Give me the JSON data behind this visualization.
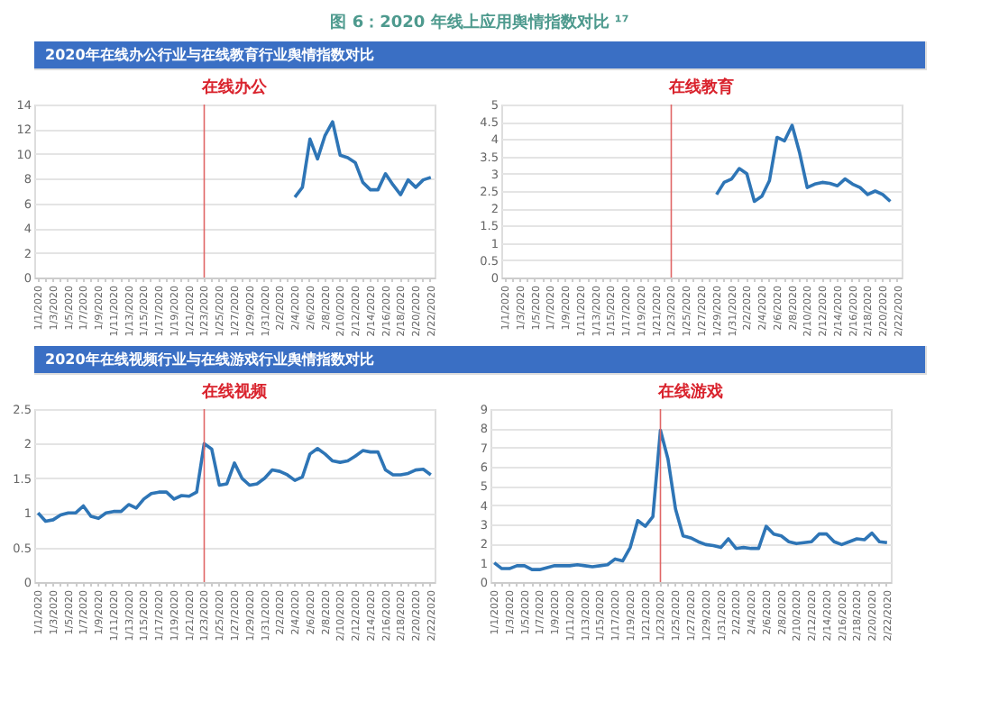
{
  "chart_data": [
    {
      "type": "line",
      "title": "在线办公",
      "annotations": [
        "图 6：2020 年线上应用舆情指数对比 ¹⁷",
        "2020年在线办公行业与在线教育行业舆情指数对比"
      ],
      "categories": [
        "1/1/2020",
        null,
        "1/3/2020",
        null,
        "1/5/2020",
        null,
        "1/7/2020",
        null,
        "1/9/2020",
        null,
        "1/11/2020",
        null,
        "1/13/2020",
        null,
        "1/15/2020",
        null,
        "1/17/2020",
        null,
        "1/19/2020",
        null,
        "1/21/2020",
        null,
        "1/23/2020",
        null,
        "1/25/2020",
        null,
        "1/27/2020",
        null,
        "1/29/2020",
        null,
        "1/31/2020",
        null,
        "2/2/2020",
        null,
        "2/4/2020",
        null,
        "2/6/2020",
        null,
        "2/8/2020",
        null,
        "2/10/2020",
        null,
        "2/12/2020",
        null,
        "2/14/2020",
        null,
        "2/16/2020",
        null,
        "2/18/2020",
        null,
        "2/20/2020",
        null,
        "2/22/2020"
      ],
      "series": [
        {
          "color": "#2e75b6",
          "values": [
            null,
            null,
            null,
            null,
            null,
            null,
            null,
            null,
            null,
            null,
            null,
            null,
            null,
            null,
            null,
            null,
            null,
            null,
            null,
            null,
            null,
            null,
            null,
            null,
            null,
            null,
            null,
            null,
            null,
            null,
            null,
            null,
            null,
            null,
            6.5,
            7.3,
            11.2,
            9.6,
            11.5,
            12.6,
            9.9,
            9.7,
            9.3,
            7.7,
            7.1,
            7.1,
            8.4,
            7.5,
            6.7,
            7.9,
            7.3,
            7.9,
            8.1
          ]
        }
      ],
      "ylim": [
        0,
        14
      ],
      "yticks": [
        0,
        2,
        4,
        6,
        8,
        10,
        12,
        14
      ],
      "grid": "y",
      "ref_lines": [
        {
          "axis": "x",
          "value": "1/23/2020",
          "color": "#e06666"
        }
      ]
    },
    {
      "type": "line",
      "title": "在线教育",
      "categories": [
        "1/1/2020",
        null,
        "1/3/2020",
        null,
        "1/5/2020",
        null,
        "1/7/2020",
        null,
        "1/9/2020",
        null,
        "1/11/2020",
        null,
        "1/13/2020",
        null,
        "1/15/2020",
        null,
        "1/17/2020",
        null,
        "1/19/2020",
        null,
        "1/21/2020",
        null,
        "1/23/2020",
        null,
        "1/25/2020",
        null,
        "1/27/2020",
        null,
        "1/29/2020",
        null,
        "1/31/2020",
        null,
        "2/2/2020",
        null,
        "2/4/2020",
        null,
        "2/6/2020",
        null,
        "2/8/2020",
        null,
        "2/10/2020",
        null,
        "2/12/2020",
        null,
        "2/14/2020",
        null,
        "2/16/2020",
        null,
        "2/18/2020",
        null,
        "2/20/2020",
        null,
        "2/22/2020"
      ],
      "series": [
        {
          "color": "#2e75b6",
          "values": [
            null,
            null,
            null,
            null,
            null,
            null,
            null,
            null,
            null,
            null,
            null,
            null,
            null,
            null,
            null,
            null,
            null,
            null,
            null,
            null,
            null,
            null,
            null,
            null,
            null,
            null,
            null,
            null,
            2.4,
            2.75,
            2.85,
            3.15,
            3.0,
            2.2,
            2.35,
            2.8,
            4.05,
            3.95,
            4.4,
            3.6,
            2.6,
            2.7,
            2.75,
            2.72,
            2.65,
            2.85,
            2.7,
            2.6,
            2.4,
            2.5,
            2.4,
            2.2,
            null
          ]
        }
      ],
      "ylim": [
        0,
        5
      ],
      "yticks": [
        0,
        0.5,
        1,
        1.5,
        2,
        2.5,
        3,
        3.5,
        4,
        4.5,
        5
      ],
      "grid": "y",
      "ref_lines": [
        {
          "axis": "x",
          "value": "1/23/2020",
          "color": "#e06666"
        }
      ]
    },
    {
      "type": "line",
      "title": "在线视频",
      "annotations": [
        "2020年在线视频行业与在线游戏行业舆情指数对比"
      ],
      "categories": [
        "1/1/2020",
        null,
        "1/3/2020",
        null,
        "1/5/2020",
        null,
        "1/7/2020",
        null,
        "1/9/2020",
        null,
        "1/11/2020",
        null,
        "1/13/2020",
        null,
        "1/15/2020",
        null,
        "1/17/2020",
        null,
        "1/19/2020",
        null,
        "1/21/2020",
        null,
        "1/23/2020",
        null,
        "1/25/2020",
        null,
        "1/27/2020",
        null,
        "1/29/2020",
        null,
        "1/31/2020",
        null,
        "2/2/2020",
        null,
        "2/4/2020",
        null,
        "2/6/2020",
        null,
        "2/8/2020",
        null,
        "2/10/2020",
        null,
        "2/12/2020",
        null,
        "2/14/2020",
        null,
        "2/16/2020",
        null,
        "2/18/2020",
        null,
        "2/20/2020",
        null,
        "2/22/2020"
      ],
      "series": [
        {
          "color": "#2e75b6",
          "values": [
            1.0,
            0.88,
            0.9,
            0.97,
            1.0,
            1.0,
            1.1,
            0.95,
            0.92,
            1.0,
            1.02,
            1.02,
            1.12,
            1.07,
            1.2,
            1.28,
            1.3,
            1.3,
            1.2,
            1.25,
            1.24,
            1.3,
            2.0,
            1.92,
            1.4,
            1.42,
            1.72,
            1.5,
            1.4,
            1.42,
            1.5,
            1.62,
            1.6,
            1.55,
            1.47,
            1.52,
            1.85,
            1.93,
            1.85,
            1.75,
            1.73,
            1.75,
            1.82,
            1.9,
            1.88,
            1.88,
            1.62,
            1.55,
            1.55,
            1.57,
            1.62,
            1.63,
            1.55
          ]
        }
      ],
      "ylim": [
        0,
        2.5
      ],
      "yticks": [
        0,
        0.5,
        1,
        1.5,
        2,
        2.5
      ],
      "grid": "y",
      "ref_lines": [
        {
          "axis": "x",
          "value": "1/23/2020",
          "color": "#e06666"
        }
      ]
    },
    {
      "type": "line",
      "title": "在线游戏",
      "categories": [
        "1/1/2020",
        null,
        "1/3/2020",
        null,
        "1/5/2020",
        null,
        "1/7/2020",
        null,
        "1/9/2020",
        null,
        "1/11/2020",
        null,
        "1/13/2020",
        null,
        "1/15/2020",
        null,
        "1/17/2020",
        null,
        "1/19/2020",
        null,
        "1/21/2020",
        null,
        "1/23/2020",
        null,
        "1/25/2020",
        null,
        "1/27/2020",
        null,
        "1/29/2020",
        null,
        "1/31/2020",
        null,
        "2/2/2020",
        null,
        "2/4/2020",
        null,
        "2/6/2020",
        null,
        "2/8/2020",
        null,
        "2/10/2020",
        null,
        "2/12/2020",
        null,
        "2/14/2020",
        null,
        "2/16/2020",
        null,
        "2/18/2020",
        null,
        "2/20/2020",
        null,
        "2/22/2020"
      ],
      "series": [
        {
          "color": "#2e75b6",
          "values": [
            1.0,
            0.7,
            0.7,
            0.85,
            0.85,
            0.65,
            0.65,
            0.75,
            0.85,
            0.85,
            0.85,
            0.9,
            0.85,
            0.8,
            0.85,
            0.9,
            1.2,
            1.1,
            1.8,
            3.2,
            2.9,
            3.4,
            7.9,
            6.4,
            3.8,
            2.4,
            2.3,
            2.1,
            1.95,
            1.9,
            1.8,
            2.25,
            1.75,
            1.8,
            1.75,
            1.75,
            2.9,
            2.5,
            2.4,
            2.1,
            2.0,
            2.05,
            2.1,
            2.5,
            2.5,
            2.1,
            1.95,
            2.1,
            2.25,
            2.2,
            2.55,
            2.1,
            2.05
          ]
        }
      ],
      "ylim": [
        0,
        9
      ],
      "yticks": [
        0,
        1,
        2,
        3,
        4,
        5,
        6,
        7,
        8,
        9
      ],
      "grid": "y",
      "ref_lines": [
        {
          "axis": "x",
          "value": "1/23/2020",
          "color": "#e06666"
        }
      ]
    }
  ]
}
